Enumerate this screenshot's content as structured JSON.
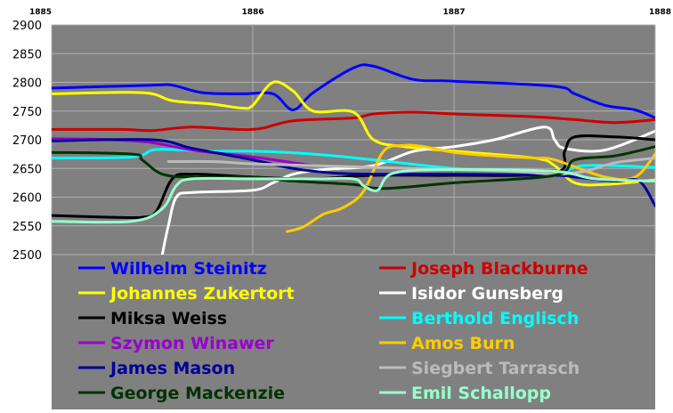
{
  "chart_data": {
    "type": "line",
    "title": "",
    "xlabel": "",
    "ylabel": "",
    "xlim": [
      1885,
      1888
    ],
    "ylim": [
      2500,
      2900
    ],
    "x_ticks": [
      "1885",
      "1886",
      "1887",
      "1888"
    ],
    "y_ticks": [
      "2900",
      "2850",
      "2800",
      "2750",
      "2700",
      "2650",
      "2600",
      "2550",
      "2500"
    ],
    "grid": true,
    "legend_position": "bottom",
    "background_color": "#808080",
    "series": [
      {
        "name": "Wilhelm Steinitz",
        "color": "#0000ff",
        "x": [
          1885,
          1885.5,
          1885.6,
          1885.75,
          1885.95,
          1886.1,
          1886.2,
          1886.3,
          1886.5,
          1886.6,
          1886.8,
          1887.0,
          1887.5,
          1887.6,
          1887.75,
          1887.9,
          1888
        ],
        "y": [
          2790,
          2795,
          2795,
          2782,
          2780,
          2780,
          2752,
          2782,
          2825,
          2828,
          2805,
          2802,
          2793,
          2780,
          2760,
          2752,
          2738
        ]
      },
      {
        "name": "Joseph Blackburne",
        "color": "#cc0000",
        "x": [
          1885,
          1885.35,
          1885.5,
          1885.7,
          1886.0,
          1886.2,
          1886.5,
          1886.6,
          1886.8,
          1887.0,
          1887.4,
          1887.6,
          1887.8,
          1888
        ],
        "y": [
          2718,
          2718,
          2716,
          2722,
          2718,
          2733,
          2738,
          2745,
          2748,
          2745,
          2740,
          2735,
          2730,
          2735
        ]
      },
      {
        "name": "Johannes Zukertort",
        "color": "#ffff00",
        "x": [
          1885,
          1885.45,
          1885.6,
          1885.8,
          1885.95,
          1886.0,
          1886.1,
          1886.2,
          1886.3,
          1886.5,
          1886.6,
          1886.75,
          1887.0,
          1887.4,
          1887.5,
          1887.6,
          1887.75,
          1888
        ],
        "y": [
          2780,
          2782,
          2768,
          2762,
          2755,
          2760,
          2800,
          2785,
          2750,
          2748,
          2700,
          2688,
          2680,
          2668,
          2655,
          2625,
          2622,
          2630
        ]
      },
      {
        "name": "Isidor Gunsberg",
        "color": "#ffffff",
        "x": [
          1885.55,
          1885.58,
          1885.62,
          1885.7,
          1886.0,
          1886.1,
          1886.2,
          1886.35,
          1886.6,
          1886.8,
          1887.0,
          1887.2,
          1887.45,
          1887.5,
          1887.55,
          1887.75,
          1888
        ],
        "y": [
          2500,
          2550,
          2600,
          2608,
          2612,
          2625,
          2640,
          2648,
          2655,
          2680,
          2688,
          2700,
          2722,
          2700,
          2685,
          2682,
          2715
        ]
      },
      {
        "name": "Miksa Weiss",
        "color": "#000000",
        "x": [
          1885,
          1885.3,
          1885.45,
          1885.52,
          1885.6,
          1885.7,
          1886.0,
          1886.3,
          1886.6,
          1887.0,
          1887.5,
          1887.55,
          1887.6,
          1887.8,
          1888
        ],
        "y": [
          2568,
          2565,
          2565,
          2575,
          2632,
          2640,
          2635,
          2632,
          2638,
          2638,
          2642,
          2680,
          2705,
          2705,
          2700
        ]
      },
      {
        "name": "Berthold Englisch",
        "color": "#00ffff",
        "x": [
          1885,
          1885.4,
          1885.5,
          1885.6,
          1885.8,
          1886.0,
          1886.3,
          1886.6,
          1887.0,
          1887.3,
          1887.5,
          1887.65,
          1888
        ],
        "y": [
          2668,
          2670,
          2682,
          2683,
          2680,
          2680,
          2675,
          2665,
          2650,
          2645,
          2640,
          2655,
          2652
        ]
      },
      {
        "name": "Szymon Winawer",
        "color": "#9900cc",
        "x": [
          1885,
          1885.3,
          1885.5,
          1885.7,
          1886.0,
          1886.2,
          1886.3
        ],
        "y": [
          2702,
          2700,
          2695,
          2682,
          2670,
          2660,
          2655
        ]
      },
      {
        "name": "Amos Burn",
        "color": "#ffcc00",
        "x": [
          1886.17,
          1886.25,
          1886.35,
          1886.45,
          1886.55,
          1886.65,
          1886.75,
          1886.85,
          1887.0,
          1887.2,
          1887.4,
          1887.5,
          1887.75,
          1887.9,
          1888
        ],
        "y": [
          2540,
          2548,
          2570,
          2582,
          2610,
          2680,
          2690,
          2688,
          2678,
          2672,
          2668,
          2665,
          2635,
          2635,
          2675
        ]
      },
      {
        "name": "James Mason",
        "color": "#000099",
        "x": [
          1885,
          1885.5,
          1885.7,
          1886.0,
          1886.2,
          1886.4,
          1886.6,
          1887.0,
          1887.5,
          1887.6,
          1887.8,
          1887.92,
          1888
        ],
        "y": [
          2698,
          2700,
          2685,
          2665,
          2650,
          2642,
          2640,
          2640,
          2638,
          2635,
          2628,
          2628,
          2585
        ]
      },
      {
        "name": "Siegbert Tarrasch",
        "color": "#bbbbbb",
        "x": [
          1885.58,
          1885.8,
          1886.0,
          1886.3,
          1886.6,
          1886.8,
          1887.0,
          1887.3,
          1887.5,
          1887.65,
          1887.8,
          1888
        ],
        "y": [
          2662,
          2662,
          2658,
          2655,
          2652,
          2650,
          2648,
          2645,
          2640,
          2645,
          2660,
          2668
        ]
      },
      {
        "name": "George Mackenzie",
        "color": "#003300",
        "x": [
          1885,
          1885.4,
          1885.45,
          1885.55,
          1885.7,
          1886.0,
          1886.2,
          1886.5,
          1886.65,
          1887.0,
          1887.5,
          1887.6,
          1887.8,
          1888
        ],
        "y": [
          2678,
          2675,
          2665,
          2640,
          2635,
          2635,
          2628,
          2622,
          2615,
          2625,
          2638,
          2665,
          2672,
          2688
        ]
      },
      {
        "name": "Emil Schallopp",
        "color": "#99ffcc",
        "x": [
          1885,
          1885.4,
          1885.55,
          1885.62,
          1885.7,
          1886.0,
          1886.3,
          1886.5,
          1886.55,
          1886.62,
          1886.7,
          1887.0,
          1887.5,
          1887.7,
          1888
        ],
        "y": [
          2558,
          2558,
          2580,
          2620,
          2632,
          2632,
          2632,
          2632,
          2620,
          2612,
          2642,
          2648,
          2645,
          2632,
          2628
        ]
      }
    ]
  }
}
